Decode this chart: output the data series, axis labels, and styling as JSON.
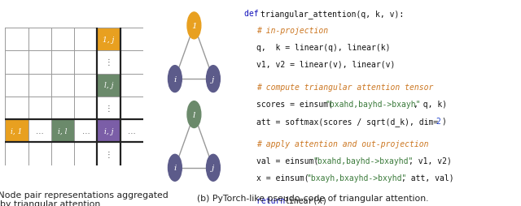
{
  "fig_width": 6.4,
  "fig_height": 2.55,
  "bg_color": "#ffffff",
  "grid_color": "#999999",
  "grid_linewidth": 0.7,
  "bold_line_color": "#222222",
  "bold_linewidth": 1.6,
  "grid_cols": 6,
  "grid_rows": 6,
  "colored_cells": [
    {
      "row": 0,
      "col": 4,
      "color": "#E8A020",
      "label": "1, j"
    },
    {
      "row": 2,
      "col": 4,
      "color": "#6B8A6B",
      "label": "l, j"
    },
    {
      "row": 4,
      "col": 0,
      "color": "#E8A020",
      "label": "i, 1"
    },
    {
      "row": 4,
      "col": 2,
      "color": "#6B8A6B",
      "label": "i, l"
    },
    {
      "row": 4,
      "col": 4,
      "color": "#7B5EA7",
      "label": "i, j"
    }
  ],
  "bold_row": 4,
  "bold_col": 4,
  "node_color_purple": "#5C5B8A",
  "node_color_orange": "#E8A020",
  "node_color_green": "#6B8A6B",
  "c_blue": "#1010BB",
  "c_orange": "#CC7722",
  "c_green": "#3A7A3A",
  "c_black": "#111111",
  "c_blue2": "#2244CC",
  "caption_fontsize": 7.8,
  "code_fontsize": 7.0
}
